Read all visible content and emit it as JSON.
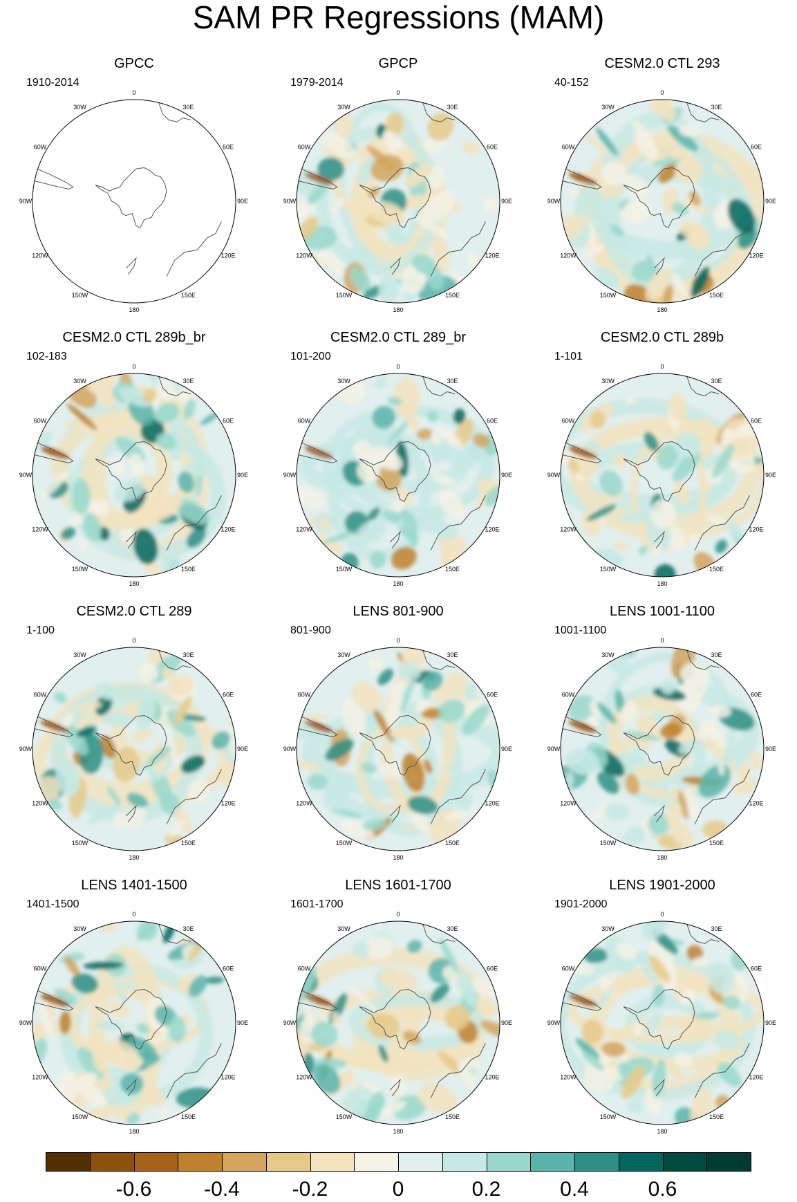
{
  "title": "SAM PR Regressions (MAM)",
  "colors": {
    "levels": [
      "#543005",
      "#8c510a",
      "#a6611a",
      "#bf812d",
      "#d3a55f",
      "#e6c989",
      "#f3e3bf",
      "#f5f2e6",
      "#e1efee",
      "#c7e9e4",
      "#99d8cb",
      "#5ab4ac",
      "#2d8f85",
      "#01665e",
      "#004a40",
      "#003c30"
    ]
  },
  "lon_labels": [
    "0",
    "30E",
    "60E",
    "90E",
    "120E",
    "150E",
    "180",
    "150W",
    "120W",
    "90W",
    "60W",
    "30W"
  ],
  "panels": [
    {
      "title": "GPCC",
      "period": "1910-2014",
      "blank": true
    },
    {
      "title": "GPCP",
      "period": "1979-2014"
    },
    {
      "title": "CESM2.0 CTL 293",
      "period": "40-152"
    },
    {
      "title": "CESM2.0 CTL 289b_br",
      "period": "102-183"
    },
    {
      "title": "CESM2.0 CTL 289_br",
      "period": "101-200"
    },
    {
      "title": "CESM2.0 CTL 289b",
      "period": "1-101"
    },
    {
      "title": "CESM2.0 CTL 289",
      "period": "1-100"
    },
    {
      "title": "LENS 801-900",
      "period": "801-900"
    },
    {
      "title": "LENS 1001-1100",
      "period": "1001-1100"
    },
    {
      "title": "LENS 1401-1500",
      "period": "1401-1500"
    },
    {
      "title": "LENS 1601-1700",
      "period": "1601-1700"
    },
    {
      "title": "LENS 1901-2000",
      "period": "1901-2000"
    }
  ],
  "colorbar": {
    "labels": [
      "-0.6",
      "-0.4",
      "-0.2",
      "0",
      "0.2",
      "0.4",
      "0.6"
    ]
  }
}
